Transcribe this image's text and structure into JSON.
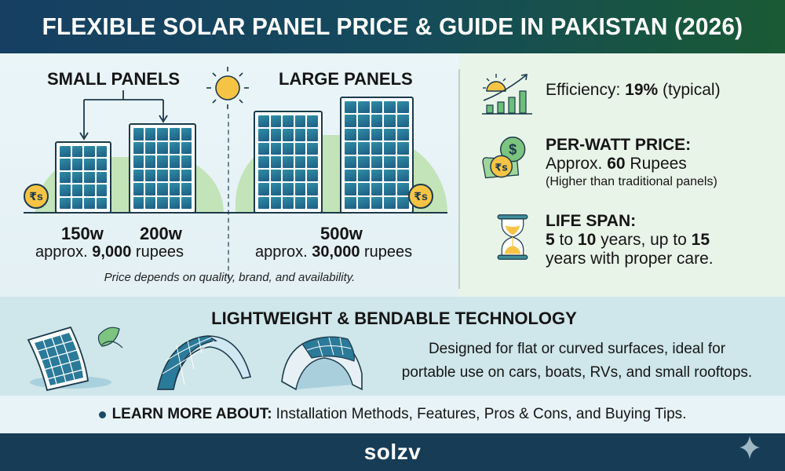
{
  "header": {
    "title": "FLEXIBLE SOLAR PANEL PRICE & GUIDE IN PAKISTAN (2026)"
  },
  "small_panels": {
    "title": "SMALL PANELS",
    "items": [
      {
        "watts": "150w"
      },
      {
        "watts": "200w"
      }
    ],
    "price_prefix": "approx.",
    "price_value": "9,000",
    "price_suffix": "rupees",
    "coin_symbol": "₹s"
  },
  "large_panels": {
    "title": "LARGE PANELS",
    "watts": "500w",
    "price_prefix": "approx.",
    "price_value": "30,000",
    "price_suffix": "rupees",
    "coin_symbol": "₹s"
  },
  "price_note": "Price depends on quality, brand, and availability.",
  "features": {
    "efficiency": {
      "label": "Efficiency:",
      "value": "19%",
      "qualifier": "(typical)",
      "icon": "growth-chart-sun-icon"
    },
    "per_watt": {
      "title": "PER-WATT PRICE:",
      "prefix": "Approx.",
      "value": "60",
      "suffix": "Rupees",
      "note": "(Higher than traditional panels)",
      "icon": "coins-hand-icon"
    },
    "lifespan": {
      "title": "LIFE SPAN:",
      "min": "5",
      "to": "to",
      "max": "10",
      "mid": "years, up to",
      "extended": "15",
      "tail": "years with proper care.",
      "icon": "hourglass-icon"
    }
  },
  "tech": {
    "title": "LIGHTWEIGHT & BENDABLE TECHNOLOGY",
    "desc_line1": "Designed for flat or curved surfaces, ideal for",
    "desc_line2": "portable use on cars, boats, RVs, and small rooftops."
  },
  "learn_more": {
    "label": "LEARN MORE ABOUT:",
    "text": "Installation Methods, Features, Pros & Cons, and Buying Tips."
  },
  "footer": {
    "brand": "solzv"
  },
  "colors": {
    "header_start": "#163f62",
    "header_end": "#1a5a34",
    "footer_bg": "#173d56",
    "coin": "#f6c445",
    "panel_cell": "#2f8fa6",
    "accent_green": "#5cb85c"
  }
}
